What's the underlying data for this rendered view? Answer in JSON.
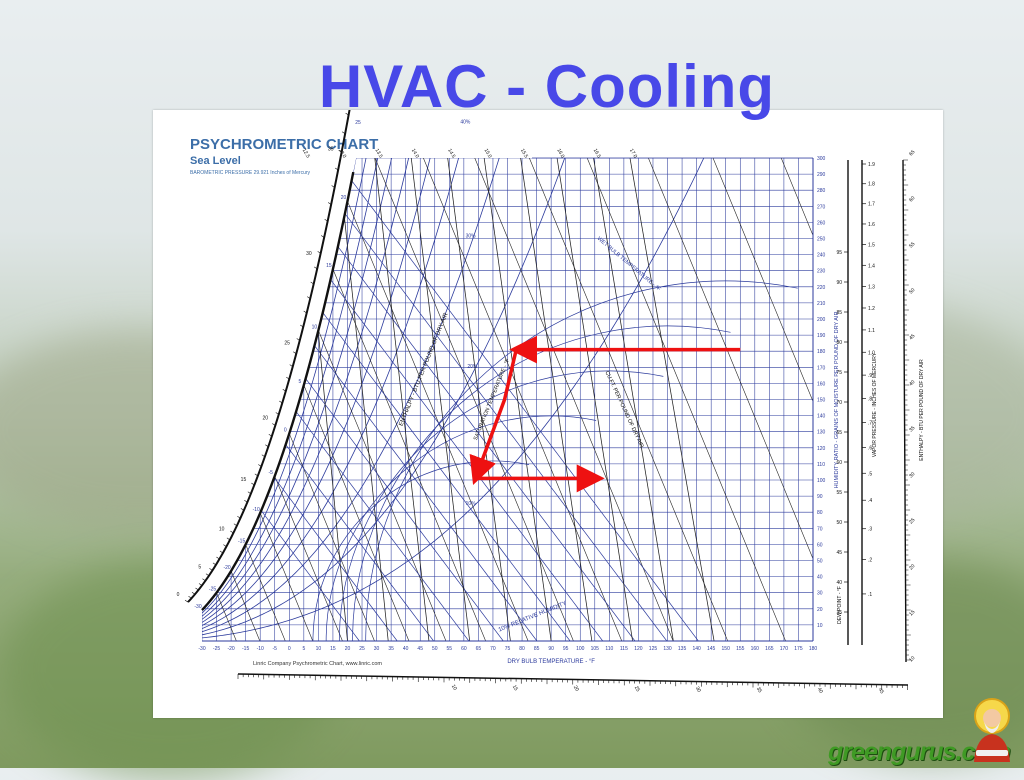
{
  "slide": {
    "title": "HVAC - Cooling"
  },
  "chart_data": {
    "type": "psychrometric",
    "title": "PSYCHROMETRIC CHART",
    "subtitle": "Sea Level",
    "pressure_note": "BAROMETRIC PRESSURE 29.921 Inches of Mercury",
    "credit": "Linric Company Psychrometric Chart, www.linric.com",
    "xlabel": "DRY BULB TEMPERATURE - °F",
    "ylabel_right": "HUMIDITY RATIO - GRAINS OF MOISTURE PER POUND OF DRY AIR",
    "enthalpy_label": "ENTHALPY - BTU PER POUND OF DRY AIR",
    "saturation_label": "SATURATION TEMPERATURE - °F",
    "wet_bulb_label": "WET BULB TEMPERATURE - °F",
    "volume_label": "CU.FT. PER POUND OF DRY AIR",
    "rh_label": "10% RELATIVE HUMIDITY",
    "dew_point_label": "DEW POINT - °F",
    "vapor_pressure_label": "VAPOR PRESSURE - INCHES OF MERCURY",
    "enthalpy_right_label": "ENTHALPY - BTU PER POUND OF DRY AIR",
    "x_ticks": [
      -30,
      -25,
      -20,
      -15,
      -10,
      -5,
      0,
      5,
      10,
      15,
      20,
      25,
      30,
      35,
      40,
      45,
      50,
      55,
      60,
      65,
      70,
      75,
      80,
      85,
      90,
      95,
      100,
      105,
      110,
      115,
      120,
      125,
      130,
      135,
      140,
      145,
      150,
      155,
      160,
      165,
      170,
      175,
      180
    ],
    "x_ticks_text": [
      "-30",
      "-25",
      "-20",
      "-15",
      "-10",
      "-5",
      "0",
      "5",
      "10",
      "15",
      "20",
      "25",
      "30",
      "35",
      "40",
      "45",
      "50",
      "55",
      "60",
      "65",
      "70",
      "75",
      "80",
      "85",
      "90",
      "95",
      "100",
      "105",
      "110",
      "115",
      "120",
      "125",
      "130",
      "135",
      "140",
      "145",
      "150",
      "155",
      "160",
      "165",
      "170",
      "175",
      "180"
    ],
    "y_ticks": [
      10,
      20,
      30,
      40,
      50,
      60,
      70,
      80,
      90,
      100,
      110,
      120,
      130,
      140,
      150,
      160,
      170,
      180,
      190,
      200,
      210,
      220,
      230,
      240,
      250,
      260,
      270,
      280,
      290,
      300
    ],
    "y_ticks_text": [
      "10",
      "20",
      "30",
      "40",
      "50",
      "60",
      "70",
      "80",
      "90",
      "100",
      "110",
      "120",
      "130",
      "140",
      "150",
      "160",
      "170",
      "180",
      "190",
      "200",
      "210",
      "220",
      "230",
      "240",
      "250",
      "260",
      "270",
      "280",
      "290",
      "300"
    ],
    "ylim": [
      0,
      300
    ],
    "xlim": [
      -30,
      180
    ],
    "rh_curves": [
      10,
      20,
      30,
      40,
      50,
      60,
      70,
      80,
      90,
      100
    ],
    "rh_labels_text": [
      "10%",
      "20%",
      "30%",
      "40%",
      "50%",
      "60%",
      "70%",
      "80%",
      "90%"
    ],
    "saturation_scale_text": [
      "-30",
      "-25",
      "-20",
      "-15",
      "-10",
      "-5",
      "0",
      "5",
      "10",
      "15",
      "20",
      "25",
      "30",
      "35",
      "40",
      "45",
      "50",
      "55",
      "60",
      "65",
      "70",
      "75",
      "80",
      "85",
      "90",
      "95"
    ],
    "enthalpy_scale_text": [
      "0",
      "5",
      "10",
      "15",
      "20",
      "25",
      "30",
      "35",
      "40",
      "45",
      "50",
      "55",
      "60",
      "65",
      "70",
      "75",
      "80"
    ],
    "bottom_enthalpy_text": [
      "10",
      "15",
      "20",
      "25",
      "30",
      "35",
      "40",
      "45"
    ],
    "volume_labels_text": [
      "12.5",
      "13.0",
      "13.5",
      "14.0",
      "14.5",
      "15.0",
      "15.5",
      "16.0",
      "16.5",
      "17.0"
    ],
    "dew_point_scale": [
      35,
      40,
      45,
      50,
      55,
      60,
      65,
      70,
      75,
      80,
      85,
      90,
      95
    ],
    "dew_point_scale_text": [
      "35",
      "40",
      "45",
      "50",
      "55",
      "60",
      "65",
      "70",
      "75",
      "80",
      "85",
      "90",
      "95"
    ],
    "vapor_pressure_scale": [
      0.1,
      0.2,
      0.3,
      0.4,
      0.5,
      0.6,
      0.7,
      0.8,
      0.9,
      1.0,
      1.1,
      1.2,
      1.3,
      1.4,
      1.5,
      1.6,
      1.7,
      1.8,
      1.9
    ],
    "vapor_pressure_scale_text": [
      ".1",
      ".2",
      ".3",
      ".4",
      ".5",
      ".6",
      ".7",
      ".8",
      ".9",
      "1.0",
      "1.1",
      "1.2",
      "1.3",
      "1.4",
      "1.5",
      "1.6",
      "1.7",
      "1.8",
      "1.9"
    ],
    "right_enthalpy_text": [
      "10",
      "15",
      "20",
      "25",
      "30",
      "35",
      "40",
      "45",
      "50",
      "55",
      "60",
      "65"
    ],
    "process_path": [
      {
        "dry_bulb": 155,
        "grains": 181
      },
      {
        "dry_bulb": 78,
        "grains": 181
      },
      {
        "dry_bulb": 74,
        "grains": 150
      },
      {
        "dry_bulb": 64,
        "grains": 101
      },
      {
        "dry_bulb": 106,
        "grains": 101
      }
    ],
    "process_color": "#ee1111",
    "grid_color": "#2b3a9c",
    "line_color": "#222222"
  },
  "branding": {
    "logo_text": "greengurus.com"
  },
  "colors": {
    "title": "#4848e8",
    "chart_heading": "#3c6ea8",
    "logo": "#3f9a24"
  }
}
